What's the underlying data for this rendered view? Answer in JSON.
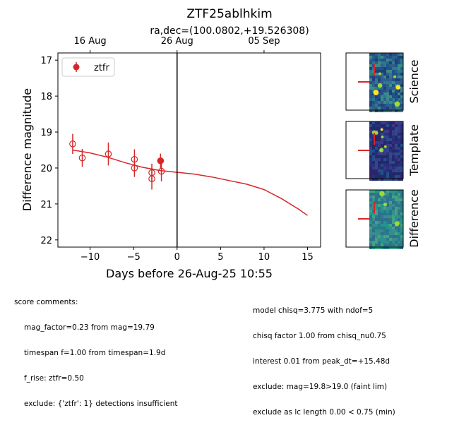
{
  "chart_data": {
    "type": "scatter",
    "title": "ZTF25ablhkim",
    "subtitle": "ra,dec=(100.0802,+19.526308)",
    "xlabel": "Days before 26-Aug-25 10:55",
    "ylabel": "Difference magnitude",
    "xlim": [
      -13.7,
      16.5
    ],
    "ylim": [
      22.2,
      16.8
    ],
    "y_inverted": true,
    "x_ticks": [
      -10,
      -5,
      0,
      5,
      10,
      15
    ],
    "x_tick_labels": [
      "−10",
      "−5",
      "0",
      "5",
      "10",
      "15"
    ],
    "y_ticks": [
      17,
      18,
      19,
      20,
      21,
      22
    ],
    "y_tick_labels": [
      "17",
      "18",
      "19",
      "20",
      "21",
      "22"
    ],
    "top_axis": {
      "ticks": [
        -10,
        0,
        10
      ],
      "labels": [
        "16 Aug",
        "26 Aug",
        "05 Sep"
      ]
    },
    "reference_line_x": 0,
    "legend": {
      "placement": "top-left",
      "entries": [
        "ztfr"
      ]
    },
    "series": [
      {
        "name": "ztfr",
        "color": "#d62728",
        "points": [
          {
            "x": -12.0,
            "y": 19.33,
            "err": 0.28,
            "filled": false
          },
          {
            "x": -10.9,
            "y": 19.72,
            "err": 0.25,
            "filled": false
          },
          {
            "x": -7.9,
            "y": 19.61,
            "err": 0.32,
            "filled": false
          },
          {
            "x": -4.9,
            "y": 19.76,
            "err": 0.28,
            "filled": false
          },
          {
            "x": -4.9,
            "y": 20.0,
            "err": 0.25,
            "filled": false
          },
          {
            "x": -2.9,
            "y": 20.13,
            "err": 0.25,
            "filled": false
          },
          {
            "x": -2.9,
            "y": 20.3,
            "err": 0.3,
            "filled": false
          },
          {
            "x": -1.8,
            "y": 20.09,
            "err": 0.28,
            "filled": false
          },
          {
            "x": -1.9,
            "y": 19.8,
            "err": 0.2,
            "filled": true
          }
        ]
      }
    ],
    "model_curve": {
      "color": "#d62728",
      "x": [
        -12,
        -10,
        -8,
        -6,
        -4,
        -2,
        0,
        2,
        4,
        6,
        8,
        10,
        12,
        14,
        15
      ],
      "y": [
        19.5,
        19.58,
        19.7,
        19.85,
        19.98,
        20.07,
        20.12,
        20.17,
        20.25,
        20.35,
        20.45,
        20.6,
        20.85,
        21.15,
        21.32
      ]
    }
  },
  "cutouts": [
    {
      "label": "Science"
    },
    {
      "label": "Template"
    },
    {
      "label": "Difference"
    }
  ],
  "comments_left": {
    "header": "score comments:",
    "lines": [
      "mag_factor=0.23 from mag=19.79",
      "timespan f=1.00 from timespan=1.9d",
      "f_rise: ztfr=0.50",
      "exclude: {'ztfr': 1} detections insufficient"
    ]
  },
  "comments_right": {
    "lines": [
      "model chisq=3.775 with ndof=5",
      "chisq factor 1.00 from chisq_nu0.75",
      "interest 0.01 from peak_dt=+15.48d",
      "exclude: mag=19.8>19.0 (faint lim)",
      "exclude as lc length 0.00 < 0.75 (min)"
    ]
  }
}
